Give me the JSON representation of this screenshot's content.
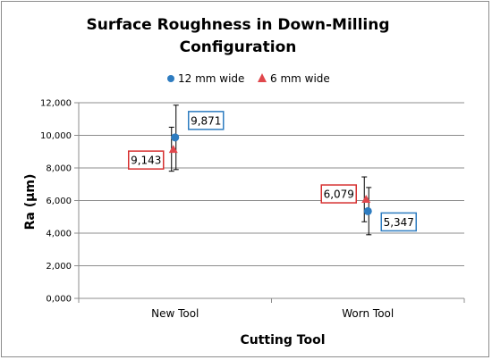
{
  "chart_data": {
    "type": "scatter",
    "title_line1": "Surface Roughness in Down-Milling",
    "title_line2": "Configuration",
    "xlabel": "Cutting Tool",
    "ylabel": "Ra (µm)",
    "categories": [
      "New Tool",
      "Worn Tool"
    ],
    "ylim": [
      0,
      12000
    ],
    "yticks": [
      0,
      2000,
      4000,
      6000,
      8000,
      10000,
      12000
    ],
    "ytick_labels": [
      "0,000",
      "2,000",
      "4,000",
      "6,000",
      "8,000",
      "10,000",
      "12,000"
    ],
    "grid": true,
    "legend_position": "top",
    "series": [
      {
        "name": "12 mm wide",
        "marker": "circle",
        "color": "#2e7cc0",
        "label_border": "#2e7cc0",
        "values": [
          9871,
          5347
        ],
        "labels": [
          "9,871",
          "5,347"
        ],
        "error_low": [
          7900,
          3900
        ],
        "error_high": [
          11850,
          6800
        ]
      },
      {
        "name": "6 mm wide",
        "marker": "triangle",
        "color": "#e0474c",
        "label_border": "#d62f2f",
        "values": [
          9143,
          6079
        ],
        "labels": [
          "9,143",
          "6,079"
        ],
        "error_low": [
          7800,
          4700
        ],
        "error_high": [
          10500,
          7450
        ]
      }
    ]
  }
}
